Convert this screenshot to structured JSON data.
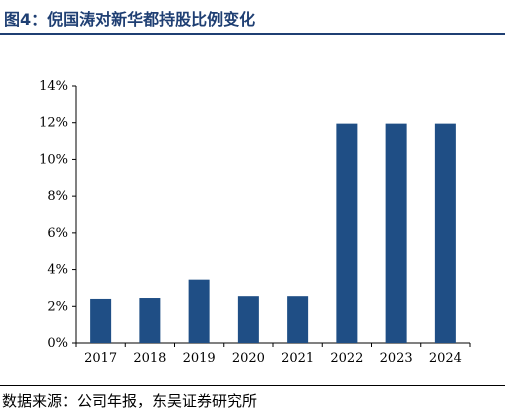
{
  "header": {
    "title": "图4：倪国涛对新华都持股比例变化"
  },
  "footer": {
    "source": "数据来源：公司年报，东吴证券研究所"
  },
  "colors": {
    "bar": "#1f4e85",
    "title": "#1f3f73",
    "axis": "#000000"
  },
  "chart_data": {
    "type": "bar",
    "title": "",
    "xlabel": "",
    "ylabel": "",
    "categories": [
      "2017",
      "2018",
      "2019",
      "2020",
      "2021",
      "2022",
      "2023",
      "2024"
    ],
    "values": [
      2.4,
      2.45,
      3.45,
      2.55,
      2.55,
      11.95,
      11.95,
      11.95
    ],
    "unit": "%",
    "ylim": [
      0,
      14
    ],
    "yticks": [
      "0%",
      "2%",
      "4%",
      "6%",
      "8%",
      "10%",
      "12%",
      "14%"
    ],
    "grid": false,
    "legend": "none"
  }
}
